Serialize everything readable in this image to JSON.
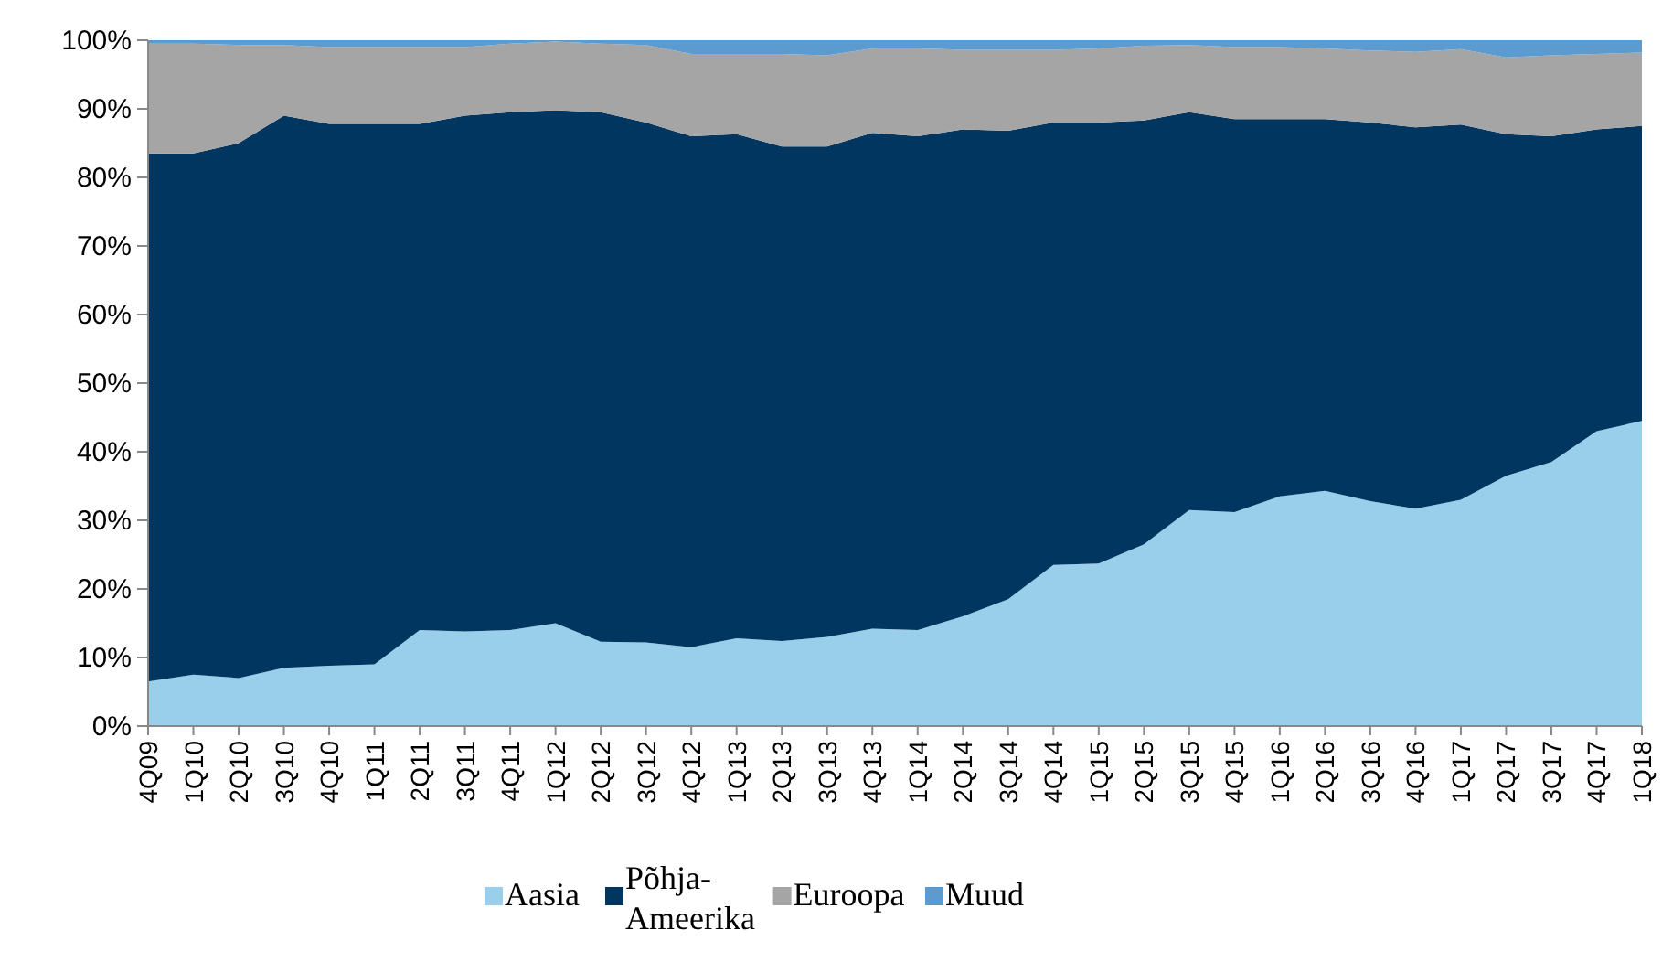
{
  "chart_data": {
    "type": "area",
    "stacked": true,
    "legend": "bottom",
    "grid": false,
    "categories": [
      "4Q09",
      "1Q10",
      "2Q10",
      "3Q10",
      "4Q10",
      "1Q11",
      "2Q11",
      "3Q11",
      "4Q11",
      "1Q12",
      "2Q12",
      "3Q12",
      "4Q12",
      "1Q13",
      "2Q13",
      "3Q13",
      "4Q13",
      "1Q14",
      "2Q14",
      "3Q14",
      "4Q14",
      "1Q15",
      "2Q15",
      "3Q15",
      "4Q15",
      "1Q16",
      "2Q16",
      "3Q16",
      "4Q16",
      "1Q17",
      "2Q17",
      "3Q17",
      "4Q17",
      "1Q18"
    ],
    "ylim": [
      0,
      100
    ],
    "yticks": [
      {
        "value": 0,
        "label": "0%"
      },
      {
        "value": 10,
        "label": "10%"
      },
      {
        "value": 20,
        "label": "20%"
      },
      {
        "value": 30,
        "label": "30%"
      },
      {
        "value": 40,
        "label": "40%"
      },
      {
        "value": 50,
        "label": "50%"
      },
      {
        "value": 60,
        "label": "60%"
      },
      {
        "value": 70,
        "label": "70%"
      },
      {
        "value": 80,
        "label": "80%"
      },
      {
        "value": 90,
        "label": "90%"
      },
      {
        "value": 100,
        "label": "100%"
      }
    ],
    "series": [
      {
        "name": "Aasia",
        "color": "#99cfea",
        "values": [
          6.5,
          7.5,
          7,
          8.5,
          8.8,
          9,
          14,
          13.8,
          14,
          15,
          12.3,
          12.2,
          11.5,
          12.8,
          12.4,
          13,
          14.2,
          14,
          16,
          18.5,
          23.5,
          23.7,
          26.5,
          31.5,
          31.2,
          33.5,
          34.3,
          32.8,
          31.7,
          33,
          36.5,
          38.5,
          43,
          44.5
        ]
      },
      {
        "name": "Põhja-Ameerika",
        "color": "#003660",
        "values": [
          77,
          76,
          78,
          80.5,
          79,
          78.8,
          73.8,
          75.2,
          75.5,
          74.8,
          77.2,
          75.8,
          74.5,
          73.5,
          72.1,
          71.5,
          72.3,
          72,
          71,
          68.3,
          64.5,
          64.3,
          61.8,
          58,
          57.3,
          55,
          54.2,
          55.2,
          55.6,
          54.7,
          49.8,
          47.5,
          44,
          43
        ]
      },
      {
        "name": "Euroopa",
        "color": "#a5a5a5",
        "values": [
          16,
          16,
          14.3,
          10.3,
          11.2,
          11.2,
          11.2,
          10,
          10,
          10,
          10,
          11.3,
          12,
          11.7,
          13.5,
          13.3,
          12.3,
          12.8,
          11.6,
          11.8,
          10.6,
          10.8,
          10.9,
          9.8,
          10.5,
          10.5,
          10.3,
          10.5,
          11,
          11,
          11.2,
          11.8,
          11,
          10.7
        ]
      },
      {
        "name": "Muud",
        "color": "#5b9bd0",
        "values": [
          0.5,
          0.5,
          0.7,
          0.7,
          1,
          1,
          1,
          1,
          0.5,
          0.2,
          0.5,
          0.7,
          2,
          2,
          2,
          2.2,
          1.2,
          1.2,
          1.4,
          1.4,
          1.4,
          1.2,
          0.8,
          0.7,
          1,
          1,
          1.2,
          1.5,
          1.7,
          1.3,
          2.5,
          2.2,
          2,
          1.8
        ]
      }
    ]
  }
}
